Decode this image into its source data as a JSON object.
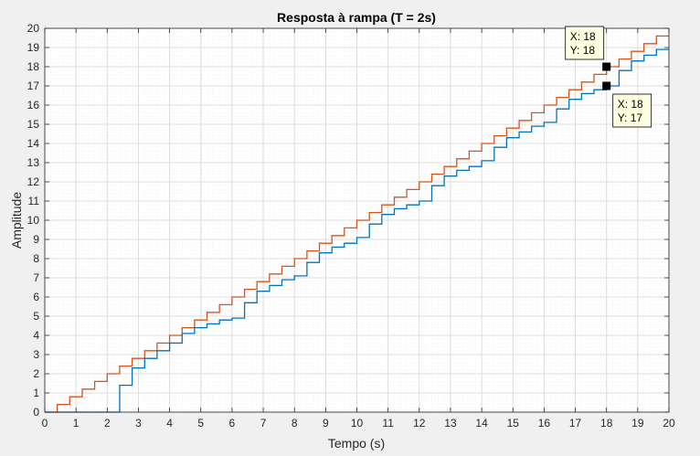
{
  "chart_data": {
    "type": "line",
    "step": true,
    "title": "Resposta à rampa (T = 2s)",
    "xlabel": "Tempo (s)",
    "ylabel": "Amplitude",
    "xlim": [
      0,
      20
    ],
    "ylim": [
      0,
      20
    ],
    "xticks": [
      0,
      1,
      2,
      3,
      4,
      5,
      6,
      7,
      8,
      9,
      10,
      11,
      12,
      13,
      14,
      15,
      16,
      17,
      18,
      19,
      20
    ],
    "yticks": [
      0,
      1,
      2,
      3,
      4,
      5,
      6,
      7,
      8,
      9,
      10,
      11,
      12,
      13,
      14,
      15,
      16,
      17,
      18,
      19,
      20
    ],
    "grid": true,
    "minor_grid": true,
    "series": [
      {
        "color": "#D95319",
        "x": [
          0,
          0.4,
          0.8,
          1.2,
          1.6,
          2.0,
          2.4,
          2.8,
          3.2,
          3.6,
          4.0,
          4.4,
          4.8,
          5.2,
          5.6,
          6.0,
          6.4,
          6.8,
          7.2,
          7.6,
          8.0,
          8.4,
          8.8,
          9.2,
          9.6,
          10.0,
          10.4,
          10.8,
          11.2,
          11.6,
          12.0,
          12.4,
          12.8,
          13.2,
          13.6,
          14.0,
          14.4,
          14.8,
          15.2,
          15.6,
          16.0,
          16.4,
          16.8,
          17.2,
          17.6,
          18.0,
          18.4,
          18.8,
          19.2,
          19.6,
          20.0
        ],
        "y": [
          0,
          0.4,
          0.8,
          1.2,
          1.6,
          2.0,
          2.4,
          2.8,
          3.2,
          3.6,
          4.0,
          4.4,
          4.8,
          5.2,
          5.6,
          6.0,
          6.4,
          6.8,
          7.2,
          7.6,
          8.0,
          8.4,
          8.8,
          9.2,
          9.6,
          10.0,
          10.4,
          10.8,
          11.2,
          11.6,
          12.0,
          12.4,
          12.8,
          13.2,
          13.6,
          14.0,
          14.4,
          14.8,
          15.2,
          15.6,
          16.0,
          16.4,
          16.8,
          17.2,
          17.6,
          18.0,
          18.4,
          18.8,
          19.2,
          19.6,
          19.6
        ]
      },
      {
        "color": "#0072BD",
        "x": [
          0,
          2.4,
          2.8,
          3.2,
          3.6,
          4.0,
          4.4,
          4.8,
          5.2,
          5.6,
          6.0,
          6.4,
          6.8,
          7.2,
          7.6,
          8.0,
          8.4,
          8.8,
          9.2,
          9.6,
          10.0,
          10.4,
          10.8,
          11.2,
          11.6,
          12.0,
          12.4,
          12.8,
          13.2,
          13.6,
          14.0,
          14.4,
          14.8,
          15.2,
          15.6,
          16.0,
          16.4,
          16.8,
          17.2,
          17.6,
          18.0,
          18.4,
          18.8,
          19.2,
          19.6,
          20.0
        ],
        "y": [
          0,
          1.4,
          2.3,
          2.8,
          3.2,
          3.6,
          4.1,
          4.4,
          4.6,
          4.8,
          4.9,
          5.7,
          6.3,
          6.6,
          6.9,
          7.1,
          7.8,
          8.3,
          8.6,
          8.8,
          9.1,
          9.8,
          10.3,
          10.6,
          10.8,
          11.0,
          11.8,
          12.3,
          12.6,
          12.8,
          13.1,
          13.8,
          14.3,
          14.6,
          14.9,
          15.1,
          15.8,
          16.3,
          16.6,
          16.8,
          17.0,
          17.8,
          18.3,
          18.6,
          18.9,
          18.9
        ]
      }
    ],
    "datatips": [
      {
        "x": 18,
        "y": 18,
        "x_text": "X: 18",
        "y_text": "Y: 18",
        "placement": "above-left"
      },
      {
        "x": 18,
        "y": 17,
        "x_text": "X: 18",
        "y_text": "Y: 17",
        "placement": "below-right"
      }
    ]
  }
}
